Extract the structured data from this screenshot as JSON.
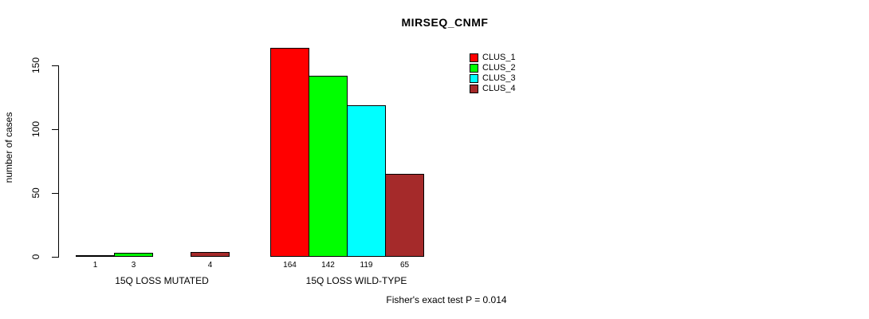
{
  "chart_data": {
    "type": "bar",
    "title": "MIRSEQ_CNMF",
    "ylabel": "number of cases",
    "xlabel": "",
    "ylim": [
      0,
      150
    ],
    "yticks": [
      0,
      50,
      100,
      150
    ],
    "grid": false,
    "legend_position": "top-right",
    "categories": [
      "15Q LOSS MUTATED",
      "15Q LOSS WILD-TYPE"
    ],
    "series": [
      {
        "name": "CLUS_1",
        "color": "#ff0000",
        "values": [
          1,
          164
        ]
      },
      {
        "name": "CLUS_2",
        "color": "#00ff00",
        "values": [
          3,
          142
        ]
      },
      {
        "name": "CLUS_3",
        "color": "#00ffff",
        "values": [
          0,
          119
        ]
      },
      {
        "name": "CLUS_4",
        "color": "#a52a2a",
        "values": [
          4,
          65
        ]
      }
    ],
    "bar_value_labels": [
      [
        "1",
        "164"
      ],
      [
        "3",
        "142"
      ],
      [
        "",
        "119"
      ],
      [
        "4",
        "65"
      ]
    ],
    "annotation": "Fisher's exact test P = 0.014",
    "axis_color": "#000000",
    "text_color": "#000000",
    "background": "#ffffff"
  }
}
